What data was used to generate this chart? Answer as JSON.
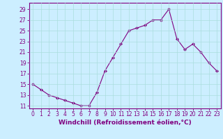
{
  "x": [
    0,
    1,
    2,
    3,
    4,
    5,
    6,
    7,
    8,
    9,
    10,
    11,
    12,
    13,
    14,
    15,
    16,
    17,
    18,
    19,
    20,
    21,
    22,
    23
  ],
  "y": [
    15,
    14,
    13,
    12.5,
    12,
    11.5,
    11,
    11,
    13.5,
    17.5,
    20,
    22.5,
    25,
    25.5,
    26,
    27,
    27,
    29,
    23.5,
    21.5,
    22.5,
    21,
    19,
    17.5
  ],
  "line_color": "#800080",
  "marker": "D",
  "marker_size": 2,
  "bg_color": "#cceeff",
  "grid_color": "#aadddd",
  "xlabel": "Windchill (Refroidissement éolien,°C)",
  "xlabel_color": "#800080",
  "yticks": [
    11,
    13,
    15,
    17,
    19,
    21,
    23,
    25,
    27,
    29
  ],
  "xticks": [
    0,
    1,
    2,
    3,
    4,
    5,
    6,
    7,
    8,
    9,
    10,
    11,
    12,
    13,
    14,
    15,
    16,
    17,
    18,
    19,
    20,
    21,
    22,
    23
  ],
  "ylim": [
    10.5,
    30.2
  ],
  "xlim": [
    -0.5,
    23.5
  ],
  "tick_color": "#800080",
  "tick_fontsize": 5.5,
  "xlabel_fontsize": 6.5
}
